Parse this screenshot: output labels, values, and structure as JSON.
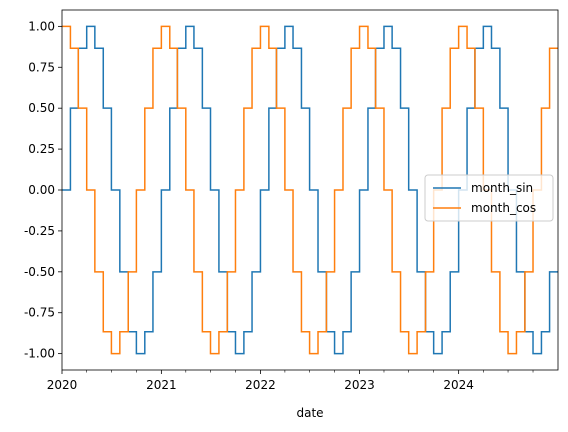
{
  "chart_data": {
    "type": "line",
    "title": "",
    "xlabel": "date",
    "ylabel": "",
    "x_start": "2020-01",
    "x_end": "2024-12",
    "x_range": [
      "2020-01-01",
      "2024-12-31"
    ],
    "ylim": [
      -1.1,
      1.1
    ],
    "grid": false,
    "legend_position": "center-right",
    "x_major_ticks": [
      "2020",
      "2021",
      "2022",
      "2023",
      "2024"
    ],
    "y_ticks": [
      "1.00",
      "0.75",
      "0.50",
      "0.25",
      "0.00",
      "-0.25",
      "-0.50",
      "-0.75",
      "-1.00"
    ],
    "x": [
      "2020-01",
      "2020-02",
      "2020-03",
      "2020-04",
      "2020-05",
      "2020-06",
      "2020-07",
      "2020-08",
      "2020-09",
      "2020-10",
      "2020-11",
      "2020-12",
      "2021-01",
      "2021-02",
      "2021-03",
      "2021-04",
      "2021-05",
      "2021-06",
      "2021-07",
      "2021-08",
      "2021-09",
      "2021-10",
      "2021-11",
      "2021-12",
      "2022-01",
      "2022-02",
      "2022-03",
      "2022-04",
      "2022-05",
      "2022-06",
      "2022-07",
      "2022-08",
      "2022-09",
      "2022-10",
      "2022-11",
      "2022-12",
      "2023-01",
      "2023-02",
      "2023-03",
      "2023-04",
      "2023-05",
      "2023-06",
      "2023-07",
      "2023-08",
      "2023-09",
      "2023-10",
      "2023-11",
      "2023-12",
      "2024-01",
      "2024-02",
      "2024-03",
      "2024-04",
      "2024-05",
      "2024-06",
      "2024-07",
      "2024-08",
      "2024-09",
      "2024-10",
      "2024-11",
      "2024-12"
    ],
    "series": [
      {
        "name": "month_sin",
        "color": "#1f77b4",
        "values": [
          0,
          0.5,
          0.866,
          1,
          0.866,
          0.5,
          0,
          -0.5,
          -0.866,
          -1,
          -0.866,
          -0.5,
          0,
          0.5,
          0.866,
          1,
          0.866,
          0.5,
          0,
          -0.5,
          -0.866,
          -1,
          -0.866,
          -0.5,
          0,
          0.5,
          0.866,
          1,
          0.866,
          0.5,
          0,
          -0.5,
          -0.866,
          -1,
          -0.866,
          -0.5,
          0,
          0.5,
          0.866,
          1,
          0.866,
          0.5,
          0,
          -0.5,
          -0.866,
          -1,
          -0.866,
          -0.5,
          0,
          0.5,
          0.866,
          1,
          0.866,
          0.5,
          0,
          -0.5,
          -0.866,
          -1,
          -0.866,
          -0.5
        ]
      },
      {
        "name": "month_cos",
        "color": "#ff7f0e",
        "values": [
          1,
          0.866,
          0.5,
          0,
          -0.5,
          -0.866,
          -1,
          -0.866,
          -0.5,
          0,
          0.5,
          0.866,
          1,
          0.866,
          0.5,
          0,
          -0.5,
          -0.866,
          -1,
          -0.866,
          -0.5,
          0,
          0.5,
          0.866,
          1,
          0.866,
          0.5,
          0,
          -0.5,
          -0.866,
          -1,
          -0.866,
          -0.5,
          0,
          0.5,
          0.866,
          1,
          0.866,
          0.5,
          0,
          -0.5,
          -0.866,
          -1,
          -0.866,
          -0.5,
          0,
          0.5,
          0.866,
          1,
          0.866,
          0.5,
          0,
          -0.5,
          -0.866,
          -1,
          -0.866,
          -0.5,
          0,
          0.5,
          0.866
        ]
      }
    ]
  }
}
